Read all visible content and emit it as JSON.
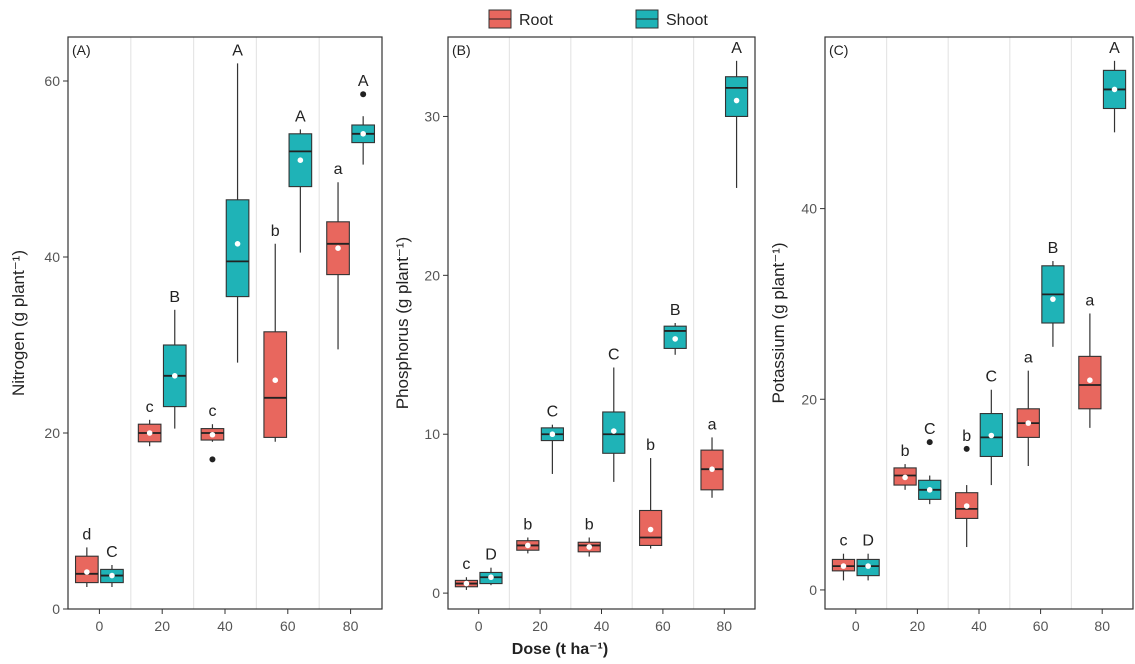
{
  "legend": {
    "items": [
      {
        "label": "Root",
        "color": "#e8675e"
      },
      {
        "label": "Shoot",
        "color": "#1fb3b7"
      }
    ],
    "placement": "top-center"
  },
  "shared_xlabel": "Dose (t ha⁻¹)",
  "chart_data": [
    {
      "type": "boxplot",
      "panel_label": "(A)",
      "ylabel": "Nitrogen (g plant⁻¹)",
      "ylim": [
        0,
        65
      ],
      "yticks": [
        0,
        20,
        40,
        60
      ],
      "categories": [
        "0",
        "20",
        "40",
        "60",
        "80"
      ],
      "series": [
        {
          "name": "Root",
          "groups": [
            {
              "dose": "0",
              "min": 2.5,
              "q1": 3,
              "median": 4,
              "q3": 6,
              "max": 7,
              "mean": 4.2,
              "letter": "d",
              "outliers": []
            },
            {
              "dose": "20",
              "min": 18.5,
              "q1": 19,
              "median": 20,
              "q3": 21,
              "max": 21.5,
              "mean": 20,
              "letter": "c",
              "outliers": []
            },
            {
              "dose": "40",
              "min": 19,
              "q1": 19.2,
              "median": 20,
              "q3": 20.5,
              "max": 21,
              "mean": 19.8,
              "letter": "c",
              "outliers": [
                17
              ]
            },
            {
              "dose": "60",
              "min": 19,
              "q1": 19.5,
              "median": 24,
              "q3": 31.5,
              "max": 41.5,
              "mean": 26,
              "letter": "b",
              "outliers": []
            },
            {
              "dose": "80",
              "min": 29.5,
              "q1": 38,
              "median": 41.5,
              "q3": 44,
              "max": 48.5,
              "mean": 41,
              "letter": "a",
              "outliers": []
            }
          ]
        },
        {
          "name": "Shoot",
          "groups": [
            {
              "dose": "0",
              "min": 2.5,
              "q1": 3,
              "median": 3.8,
              "q3": 4.5,
              "max": 5,
              "mean": 3.8,
              "letter": "C",
              "outliers": []
            },
            {
              "dose": "20",
              "min": 20.5,
              "q1": 23,
              "median": 26.5,
              "q3": 30,
              "max": 34,
              "mean": 26.5,
              "letter": "B",
              "outliers": []
            },
            {
              "dose": "40",
              "min": 28,
              "q1": 35.5,
              "median": 39.5,
              "q3": 46.5,
              "max": 62,
              "mean": 41.5,
              "letter": "A",
              "outliers": []
            },
            {
              "dose": "60",
              "min": 40.5,
              "q1": 48,
              "median": 52,
              "q3": 54,
              "max": 54.5,
              "mean": 51,
              "letter": "A",
              "outliers": []
            },
            {
              "dose": "80",
              "min": 50.5,
              "q1": 53,
              "median": 54,
              "q3": 55,
              "max": 56,
              "mean": 54,
              "letter": "A",
              "outliers": [
                58.5
              ]
            }
          ]
        }
      ]
    },
    {
      "type": "boxplot",
      "panel_label": "(B)",
      "ylabel": "Phosphorus (g plant⁻¹)",
      "ylim": [
        -1,
        35
      ],
      "yticks": [
        0,
        10,
        20,
        30
      ],
      "categories": [
        "0",
        "20",
        "40",
        "60",
        "80"
      ],
      "series": [
        {
          "name": "Root",
          "groups": [
            {
              "dose": "0",
              "min": 0.2,
              "q1": 0.4,
              "median": 0.6,
              "q3": 0.8,
              "max": 1,
              "mean": 0.6,
              "letter": "c",
              "outliers": []
            },
            {
              "dose": "20",
              "min": 2.5,
              "q1": 2.7,
              "median": 3,
              "q3": 3.3,
              "max": 3.5,
              "mean": 3,
              "letter": "b",
              "outliers": []
            },
            {
              "dose": "40",
              "min": 2.3,
              "q1": 2.6,
              "median": 3,
              "q3": 3.2,
              "max": 3.5,
              "mean": 2.9,
              "letter": "b",
              "outliers": []
            },
            {
              "dose": "60",
              "min": 2.8,
              "q1": 3,
              "median": 3.5,
              "q3": 5.2,
              "max": 8.5,
              "mean": 4,
              "letter": "b",
              "outliers": []
            },
            {
              "dose": "80",
              "min": 6,
              "q1": 6.5,
              "median": 7.8,
              "q3": 9,
              "max": 9.8,
              "mean": 7.8,
              "letter": "a",
              "outliers": []
            }
          ]
        },
        {
          "name": "Shoot",
          "groups": [
            {
              "dose": "0",
              "min": 0.5,
              "q1": 0.6,
              "median": 1,
              "q3": 1.3,
              "max": 1.6,
              "mean": 1,
              "letter": "D",
              "outliers": []
            },
            {
              "dose": "20",
              "min": 7.5,
              "q1": 9.6,
              "median": 10,
              "q3": 10.4,
              "max": 10.6,
              "mean": 10,
              "letter": "C",
              "outliers": []
            },
            {
              "dose": "40",
              "min": 7,
              "q1": 8.8,
              "median": 10,
              "q3": 11.4,
              "max": 14.2,
              "mean": 10.2,
              "letter": "C",
              "outliers": []
            },
            {
              "dose": "60",
              "min": 15,
              "q1": 15.4,
              "median": 16.5,
              "q3": 16.8,
              "max": 17,
              "mean": 16,
              "letter": "B",
              "outliers": []
            },
            {
              "dose": "80",
              "min": 25.5,
              "q1": 30,
              "median": 31.8,
              "q3": 32.5,
              "max": 33.5,
              "mean": 31,
              "letter": "A",
              "outliers": []
            }
          ]
        }
      ]
    },
    {
      "type": "boxplot",
      "panel_label": "(C)",
      "ylabel": "Potassium (g plant⁻¹)",
      "ylim": [
        -2,
        58
      ],
      "yticks": [
        0,
        20,
        40
      ],
      "categories": [
        "0",
        "20",
        "40",
        "60",
        "80"
      ],
      "series": [
        {
          "name": "Root",
          "groups": [
            {
              "dose": "0",
              "min": 1,
              "q1": 2,
              "median": 2.5,
              "q3": 3.2,
              "max": 3.8,
              "mean": 2.5,
              "letter": "c",
              "outliers": []
            },
            {
              "dose": "20",
              "min": 10.5,
              "q1": 11,
              "median": 12,
              "q3": 12.8,
              "max": 13.2,
              "mean": 11.8,
              "letter": "b",
              "outliers": []
            },
            {
              "dose": "40",
              "min": 4.5,
              "q1": 7.5,
              "median": 8.5,
              "q3": 10.2,
              "max": 11,
              "mean": 8.8,
              "letter": "b",
              "outliers": [
                14.8
              ]
            },
            {
              "dose": "60",
              "min": 13,
              "q1": 16,
              "median": 17.5,
              "q3": 19,
              "max": 23,
              "mean": 17.5,
              "letter": "a",
              "outliers": []
            },
            {
              "dose": "80",
              "min": 17,
              "q1": 19,
              "median": 21.5,
              "q3": 24.5,
              "max": 29,
              "mean": 22,
              "letter": "a",
              "outliers": []
            }
          ]
        },
        {
          "name": "Shoot",
          "groups": [
            {
              "dose": "0",
              "min": 1,
              "q1": 1.5,
              "median": 2.5,
              "q3": 3.2,
              "max": 3.8,
              "mean": 2.5,
              "letter": "D",
              "outliers": []
            },
            {
              "dose": "20",
              "min": 9,
              "q1": 9.5,
              "median": 10.5,
              "q3": 11.5,
              "max": 12,
              "mean": 10.5,
              "letter": "C",
              "outliers": [
                15.5
              ]
            },
            {
              "dose": "40",
              "min": 11,
              "q1": 14,
              "median": 16,
              "q3": 18.5,
              "max": 21,
              "mean": 16.2,
              "letter": "C",
              "outliers": []
            },
            {
              "dose": "60",
              "min": 25.5,
              "q1": 28,
              "median": 31,
              "q3": 34,
              "max": 34.5,
              "mean": 30.5,
              "letter": "B",
              "outliers": []
            },
            {
              "dose": "80",
              "min": 48,
              "q1": 50.5,
              "median": 52.5,
              "q3": 54.5,
              "max": 55.5,
              "mean": 52.5,
              "letter": "A",
              "outliers": []
            }
          ]
        }
      ]
    }
  ]
}
